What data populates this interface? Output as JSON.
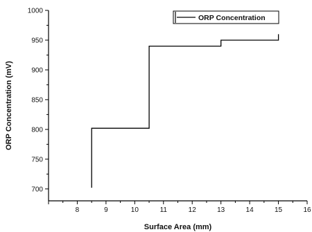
{
  "chart_data": {
    "type": "line",
    "step": true,
    "title": "",
    "xlabel": "Surface Area (mm)",
    "ylabel": "ORP Concentration (mV)",
    "xlim": [
      7,
      16
    ],
    "ylim": [
      680,
      1000
    ],
    "xticks": [
      8,
      9,
      10,
      11,
      12,
      13,
      14,
      15,
      16
    ],
    "yticks": [
      700,
      750,
      800,
      850,
      900,
      950,
      1000
    ],
    "grid": false,
    "legend_position": "top-right",
    "series": [
      {
        "name": "ORP Concentration",
        "color": "#000000",
        "x": [
          8.5,
          8.5,
          10.5,
          10.5,
          13,
          13,
          15,
          15
        ],
        "y": [
          702,
          802,
          802,
          940,
          940,
          950,
          950,
          960
        ]
      }
    ]
  }
}
